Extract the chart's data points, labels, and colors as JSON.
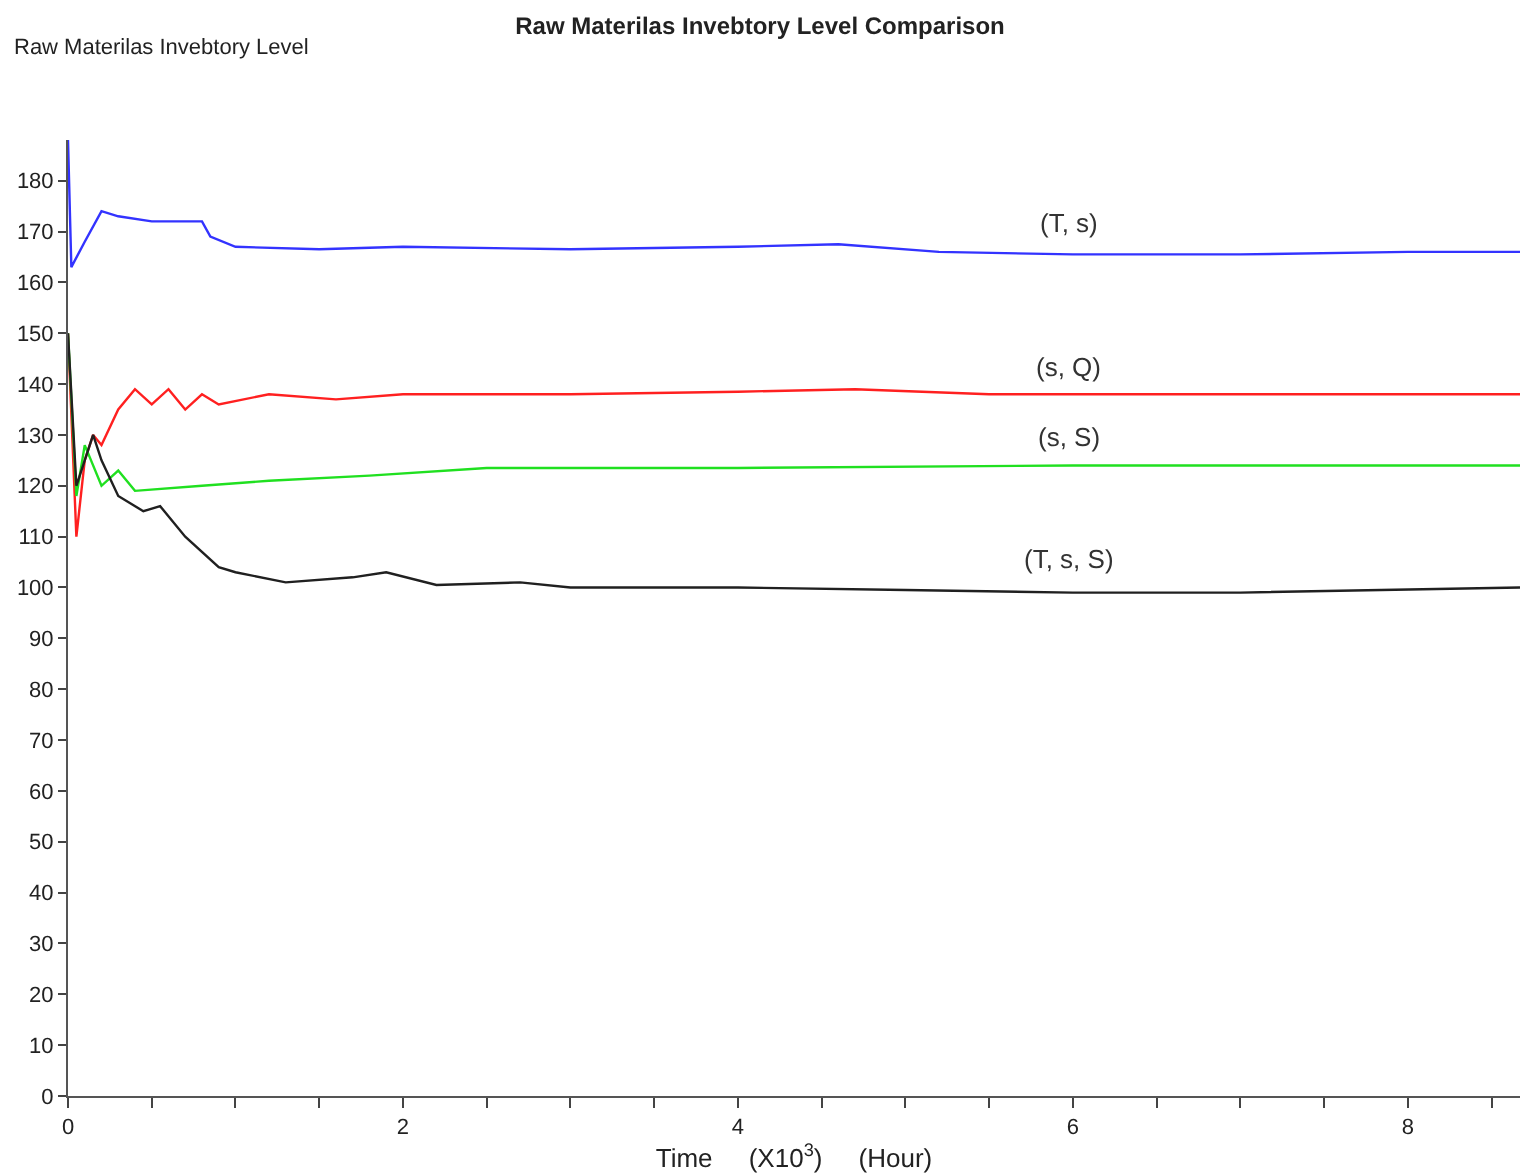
{
  "chart_data": {
    "type": "line",
    "title": "Raw Materilas Invebtory Level Comparison",
    "ylabel": "Raw Materilas Invebtory Level",
    "xlabel": "Time     (X10$^{3}$)     (Hour)",
    "xlim": [
      0,
      8.67
    ],
    "ylim": [
      0,
      188
    ],
    "xticks": [
      0,
      {
        "value": 0.5,
        "label": null
      },
      {
        "value": 1,
        "label": null
      },
      {
        "value": 1.5,
        "label": null
      },
      2,
      {
        "value": 2.5,
        "label": null
      },
      {
        "value": 3,
        "label": null
      },
      {
        "value": 3.5,
        "label": null
      },
      4,
      {
        "value": 4.5,
        "label": null
      },
      {
        "value": 5,
        "label": null
      },
      {
        "value": 5.5,
        "label": null
      },
      6,
      {
        "value": 6.5,
        "label": null
      },
      {
        "value": 7,
        "label": null
      },
      {
        "value": 7.5,
        "label": null
      },
      8,
      {
        "value": 8.5,
        "label": null
      }
    ],
    "yticks": [
      0,
      10,
      20,
      30,
      40,
      50,
      60,
      70,
      80,
      90,
      100,
      110,
      120,
      130,
      140,
      150,
      160,
      170,
      180
    ],
    "legend": false,
    "marker": "none",
    "line_style": "solid",
    "series": [
      {
        "name": "(T, s)",
        "color": "#3333ff",
        "x": [
          0,
          0.02,
          0.1,
          0.2,
          0.3,
          0.5,
          0.8,
          0.85,
          1.0,
          1.5,
          2,
          3,
          4,
          4.6,
          5.2,
          6,
          7,
          8,
          8.67
        ],
        "values": [
          188,
          163,
          168,
          174,
          173,
          172,
          172,
          169,
          167,
          166.5,
          167,
          166.5,
          167,
          167.5,
          166,
          165.5,
          165.5,
          166,
          166
        ]
      },
      {
        "name": "(s, Q)",
        "color": "#ff2020",
        "x": [
          0,
          0.05,
          0.1,
          0.15,
          0.2,
          0.3,
          0.4,
          0.5,
          0.6,
          0.7,
          0.8,
          0.9,
          1.2,
          1.6,
          2,
          3,
          4,
          4.7,
          5.5,
          8.67
        ],
        "values": [
          150,
          110,
          125,
          130,
          128,
          135,
          139,
          136,
          139,
          135,
          138,
          136,
          138,
          137,
          138,
          138,
          138.5,
          139,
          138,
          138
        ]
      },
      {
        "name": "(s, S)",
        "color": "#20e020",
        "x": [
          0,
          0.05,
          0.1,
          0.2,
          0.3,
          0.4,
          0.8,
          1.2,
          1.8,
          2.5,
          4,
          6,
          8.67
        ],
        "values": [
          150,
          118,
          128,
          120,
          123,
          119,
          120,
          121,
          122,
          123.5,
          123.5,
          124,
          124
        ]
      },
      {
        "name": "(T, s, S)",
        "color": "#202020",
        "x": [
          0,
          0.05,
          0.15,
          0.2,
          0.3,
          0.45,
          0.55,
          0.7,
          0.9,
          1.0,
          1.3,
          1.7,
          1.9,
          2.2,
          2.7,
          3,
          4,
          5,
          6,
          7,
          8.67
        ],
        "values": [
          150,
          120,
          130,
          125,
          118,
          115,
          116,
          110,
          104,
          103,
          101,
          102,
          103,
          100.5,
          101,
          100,
          100,
          99.5,
          99,
          99,
          100
        ]
      }
    ]
  }
}
